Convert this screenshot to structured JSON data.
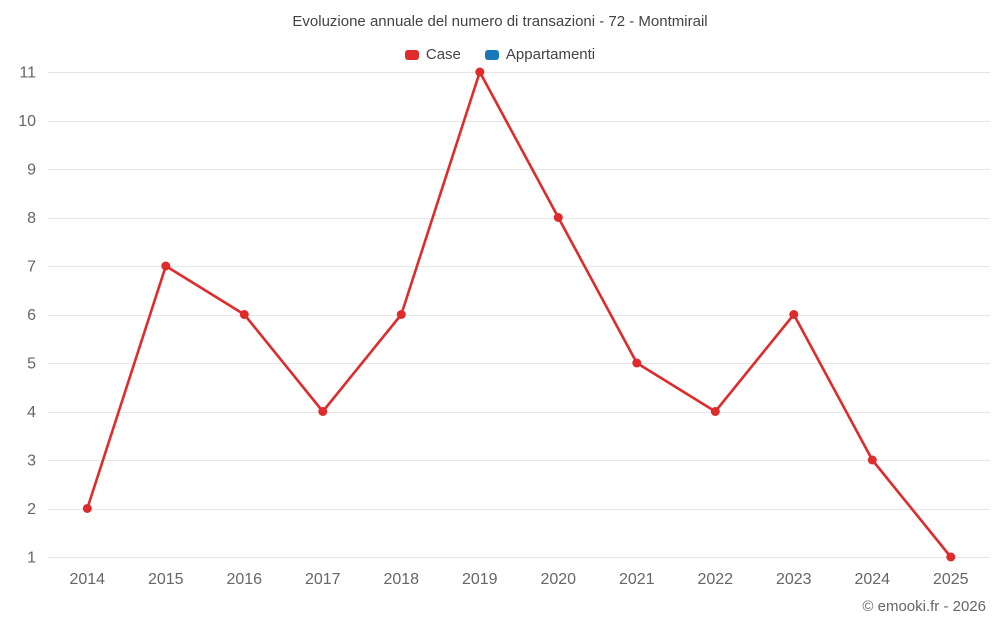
{
  "chart_data": {
    "type": "line",
    "title": "Evoluzione annuale del numero di transazioni - 72 - Montmirail",
    "categories": [
      "2014",
      "2015",
      "2016",
      "2017",
      "2018",
      "2019",
      "2020",
      "2021",
      "2022",
      "2023",
      "2024",
      "2025"
    ],
    "series": [
      {
        "name": "Case",
        "color": "#df2b2b",
        "values": [
          2,
          7,
          6,
          4,
          6,
          11,
          8,
          5,
          4,
          6,
          3,
          1
        ]
      },
      {
        "name": "Appartamenti",
        "color": "#1779ba",
        "values": []
      }
    ],
    "xlabel": "",
    "ylabel": "",
    "ylim": [
      1,
      11
    ],
    "yticks": [
      1,
      2,
      3,
      4,
      5,
      6,
      7,
      8,
      9,
      10,
      11
    ],
    "grid": "horizontal",
    "legend_position": "top"
  },
  "footer": {
    "copyright": "© emooki.fr - 2026"
  },
  "style": {
    "grid_color": "#e6e6e6",
    "axis_label_color": "#666666",
    "title_color": "#434348",
    "background_color": "#ffffff"
  }
}
